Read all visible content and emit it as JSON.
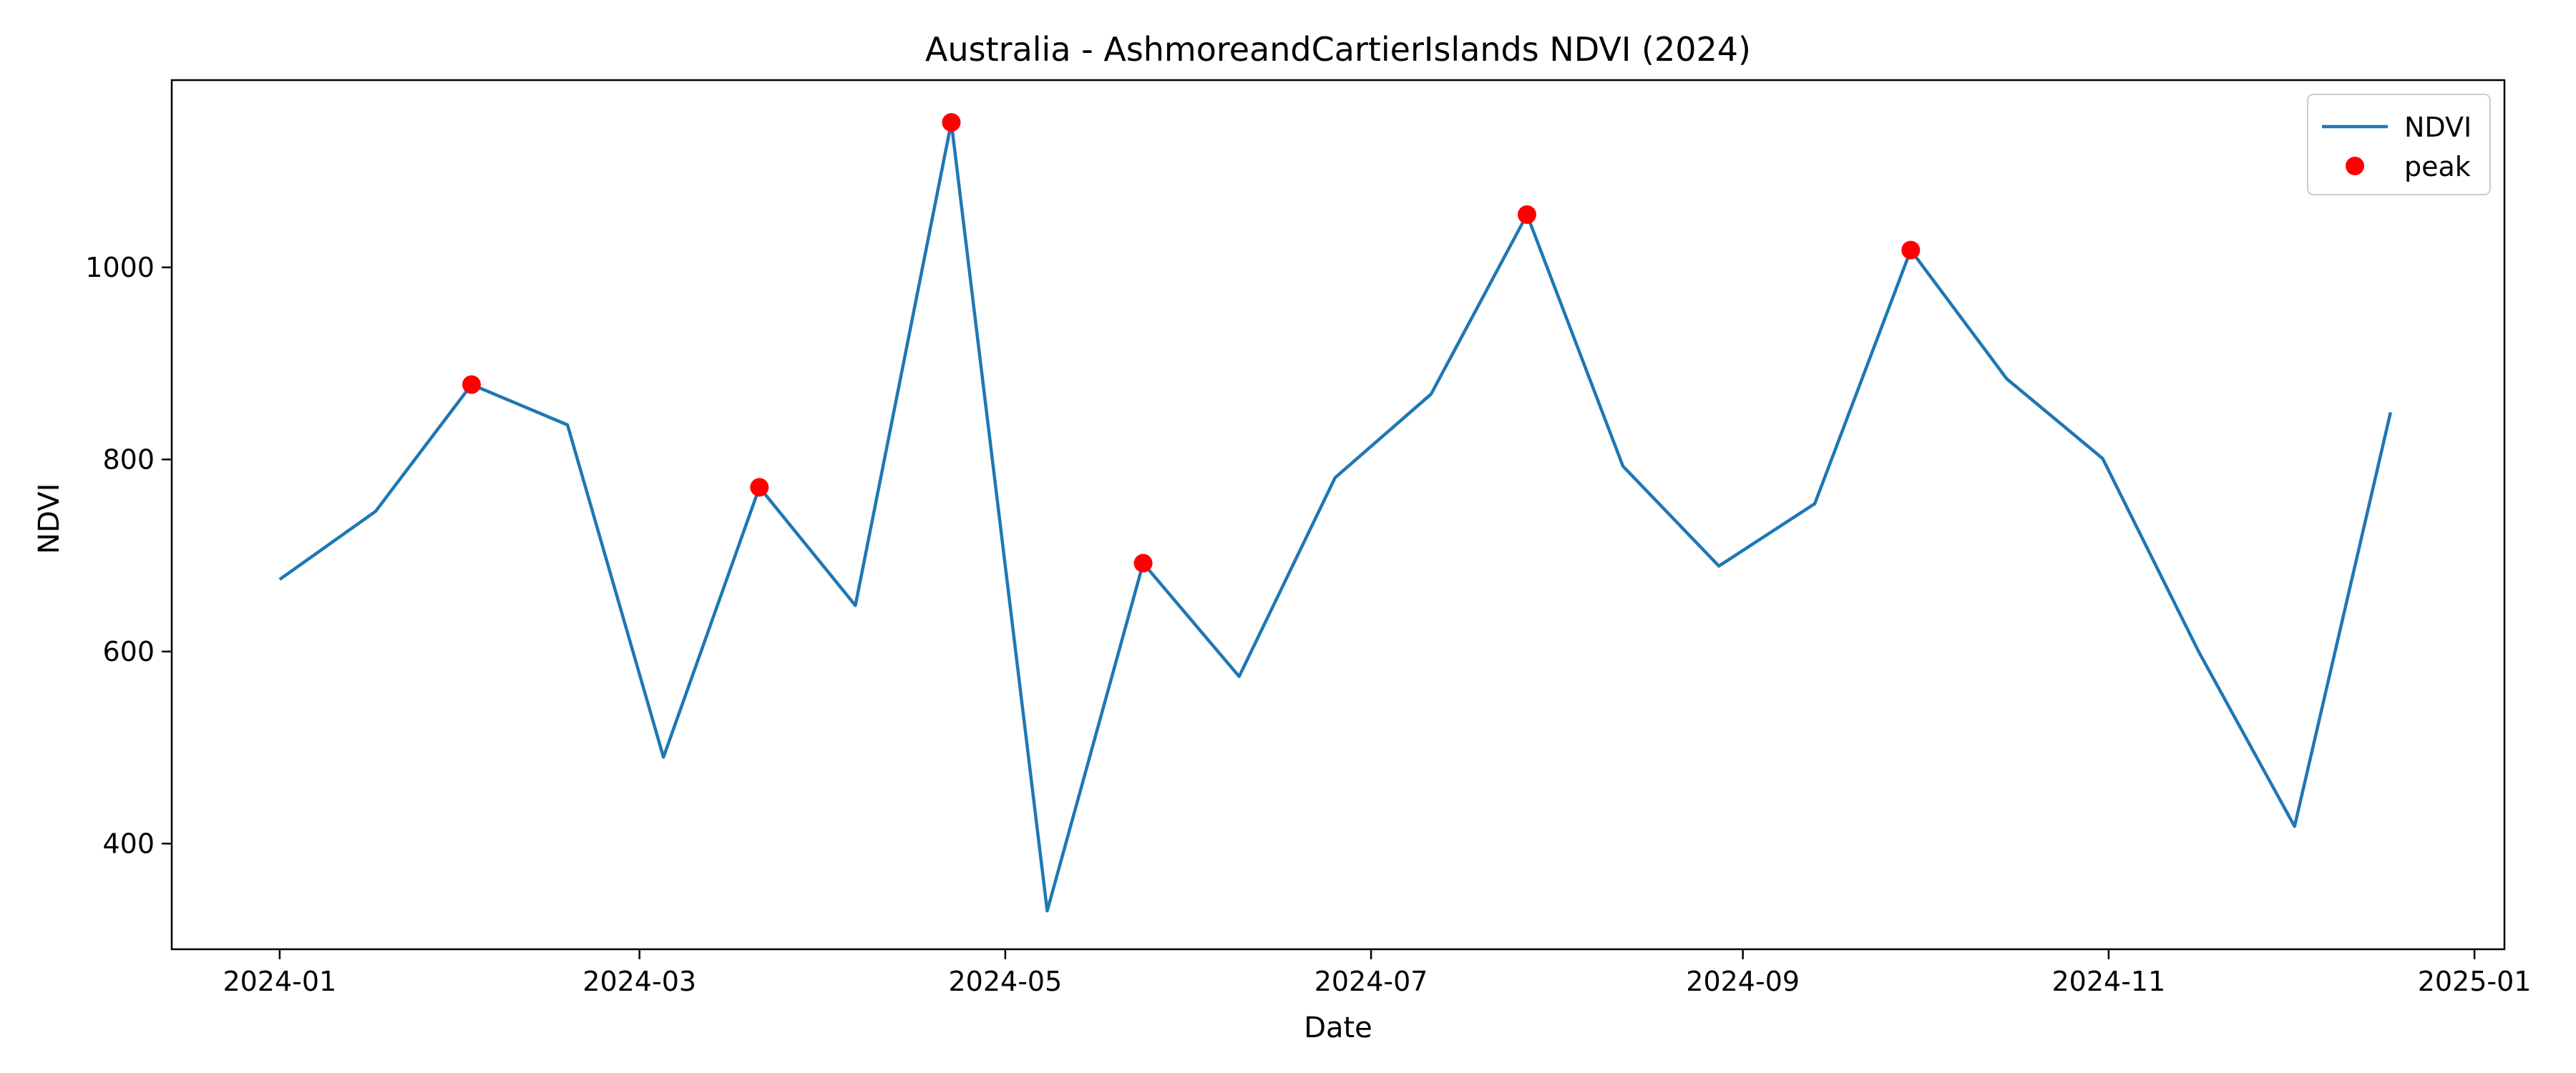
{
  "chart_data": {
    "type": "line",
    "title": "Australia - AshmoreandCartierIslands NDVI (2024)",
    "xlabel": "Date",
    "ylabel": "NDVI",
    "xlim": [
      "2023-12-14",
      "2025-01-06"
    ],
    "ylim": [
      290,
      1195
    ],
    "x_ticks": [
      "2024-01",
      "2024-03",
      "2024-05",
      "2024-07",
      "2024-09",
      "2024-11",
      "2025-01"
    ],
    "y_ticks": [
      400,
      600,
      800,
      1000
    ],
    "grid": false,
    "legend_position": "top-right",
    "colors": {
      "line": "#1f77b4",
      "peak": "#ff0000"
    },
    "series": [
      {
        "name": "NDVI",
        "style": "line",
        "points": [
          {
            "x": "2024-01-01",
            "y": 675
          },
          {
            "x": "2024-01-17",
            "y": 746
          },
          {
            "x": "2024-02-02",
            "y": 878
          },
          {
            "x": "2024-02-18",
            "y": 836
          },
          {
            "x": "2024-03-05",
            "y": 490
          },
          {
            "x": "2024-03-21",
            "y": 771
          },
          {
            "x": "2024-04-06",
            "y": 648
          },
          {
            "x": "2024-04-22",
            "y": 1151
          },
          {
            "x": "2024-05-08",
            "y": 330
          },
          {
            "x": "2024-05-24",
            "y": 692
          },
          {
            "x": "2024-06-09",
            "y": 574
          },
          {
            "x": "2024-06-25",
            "y": 781
          },
          {
            "x": "2024-07-11",
            "y": 868
          },
          {
            "x": "2024-07-27",
            "y": 1055
          },
          {
            "x": "2024-08-12",
            "y": 793
          },
          {
            "x": "2024-08-28",
            "y": 689
          },
          {
            "x": "2024-09-13",
            "y": 754
          },
          {
            "x": "2024-09-29",
            "y": 1018
          },
          {
            "x": "2024-10-15",
            "y": 884
          },
          {
            "x": "2024-10-31",
            "y": 801
          },
          {
            "x": "2024-11-16",
            "y": 600
          },
          {
            "x": "2024-12-02",
            "y": 418
          },
          {
            "x": "2024-12-18",
            "y": 849
          }
        ]
      },
      {
        "name": "peak",
        "style": "markers",
        "points": [
          {
            "x": "2024-02-02",
            "y": 878
          },
          {
            "x": "2024-03-21",
            "y": 771
          },
          {
            "x": "2024-04-22",
            "y": 1151
          },
          {
            "x": "2024-05-24",
            "y": 692
          },
          {
            "x": "2024-07-27",
            "y": 1055
          },
          {
            "x": "2024-09-29",
            "y": 1018
          }
        ]
      }
    ]
  }
}
